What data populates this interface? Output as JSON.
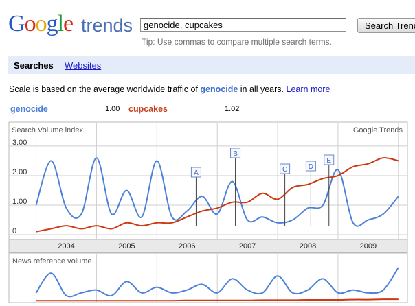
{
  "header": {
    "logo": {
      "g1": "G",
      "o1": "o",
      "o2": "o",
      "g2": "g",
      "l": "l",
      "e": "e"
    },
    "product": "trends",
    "search_value": "genocide, cupcakes",
    "search_button": "Search Trends",
    "tip": "Tip: Use commas to compare multiple search terms."
  },
  "tabs": {
    "searches": "Searches",
    "websites": "Websites"
  },
  "scale_note": {
    "prefix": "Scale is based on the average worldwide traffic of",
    "keyword": "genocide",
    "suffix": "in all years.",
    "link": "Learn more"
  },
  "legend": {
    "term1": "genocide",
    "term1_value": "1.00",
    "term2": "cupcakes",
    "term2_value": "1.02"
  },
  "colors": {
    "genocide": "#4d82d8",
    "cupcakes": "#cc3a13",
    "grid": "#cfcfcf"
  },
  "chart_data": [
    {
      "type": "line",
      "title": "Search Volume index",
      "watermark": "Google Trends",
      "x_labels": [
        "2004",
        "2005",
        "2006",
        "2007",
        "2008",
        "2009"
      ],
      "x": [
        2004.0,
        2004.25,
        2004.5,
        2004.75,
        2005.0,
        2005.25,
        2005.5,
        2005.75,
        2006.0,
        2006.25,
        2006.5,
        2006.75,
        2007.0,
        2007.25,
        2007.5,
        2007.75,
        2008.0,
        2008.25,
        2008.5,
        2008.75,
        2009.0,
        2009.25,
        2009.5,
        2009.75,
        2010.0
      ],
      "ylim": [
        0,
        3.3
      ],
      "y_ticks": [
        "0",
        "1.00",
        "2.00",
        "3.00"
      ],
      "series": [
        {
          "name": "genocide",
          "values": [
            1.0,
            2.5,
            0.9,
            0.7,
            2.6,
            0.7,
            1.5,
            0.6,
            2.5,
            0.6,
            0.8,
            1.3,
            0.7,
            1.8,
            0.5,
            0.6,
            0.4,
            0.5,
            0.9,
            1.0,
            2.2,
            0.4,
            0.5,
            0.7,
            1.3
          ]
        },
        {
          "name": "cupcakes",
          "values": [
            0.1,
            0.2,
            0.3,
            0.2,
            0.3,
            0.2,
            0.4,
            0.3,
            0.4,
            0.4,
            0.6,
            0.8,
            0.9,
            1.1,
            1.1,
            1.4,
            1.2,
            1.6,
            1.7,
            1.9,
            2.0,
            2.3,
            2.4,
            2.6,
            2.5
          ]
        }
      ],
      "annotations": [
        {
          "label": "A",
          "x": 2006.65
        },
        {
          "label": "B",
          "x": 2007.3
        },
        {
          "label": "C",
          "x": 2008.12
        },
        {
          "label": "D",
          "x": 2008.55
        },
        {
          "label": "E",
          "x": 2008.85
        }
      ]
    },
    {
      "type": "line",
      "title": "News reference volume",
      "x": [
        2004.0,
        2004.25,
        2004.5,
        2004.75,
        2005.0,
        2005.25,
        2005.5,
        2005.75,
        2006.0,
        2006.25,
        2006.5,
        2006.75,
        2007.0,
        2007.25,
        2007.5,
        2007.75,
        2008.0,
        2008.25,
        2008.5,
        2008.75,
        2009.0,
        2009.25,
        2009.5,
        2009.75,
        2010.0
      ],
      "series": [
        {
          "name": "genocide",
          "values": [
            0.3,
            1.0,
            0.2,
            0.3,
            0.4,
            0.2,
            0.7,
            0.3,
            0.5,
            0.3,
            0.4,
            0.6,
            0.3,
            0.8,
            0.4,
            0.3,
            0.9,
            0.3,
            0.4,
            0.8,
            0.3,
            0.4,
            0.3,
            0.4,
            1.2
          ]
        },
        {
          "name": "cupcakes",
          "values": [
            0.02,
            0.02,
            0.02,
            0.02,
            0.02,
            0.02,
            0.02,
            0.02,
            0.02,
            0.02,
            0.03,
            0.03,
            0.03,
            0.03,
            0.03,
            0.04,
            0.04,
            0.04,
            0.05,
            0.05,
            0.05,
            0.06,
            0.06,
            0.07,
            0.07
          ]
        }
      ]
    }
  ]
}
